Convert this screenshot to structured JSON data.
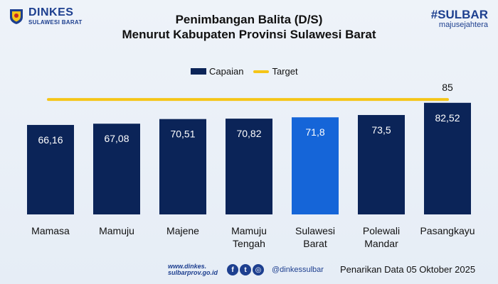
{
  "header": {
    "brand_name": "DINKES",
    "brand_sub": "SULAWESI BARAT",
    "hashtag": "#SULBAR",
    "tagline": "majusejahtera",
    "title_line1": "Penimbangan Balita (D/S)",
    "title_line2": "Menurut Kabupaten Provinsi Sulawesi Barat"
  },
  "legend": {
    "bar_label": "Capaian",
    "line_label": "Target"
  },
  "footer": {
    "web_line1": "www.dinkes.",
    "web_line2": "sulbarprov.go.id",
    "social_handle": "@dinkessulbar",
    "source": "Penarikan Data 05 Oktober 2025"
  },
  "colors": {
    "bar": "#0b2458",
    "highlight_bar": "#1565d8",
    "target": "#f5c518"
  },
  "icons": [
    "facebook-icon",
    "twitter-icon",
    "instagram-icon"
  ],
  "chart_data": {
    "type": "bar",
    "categories": [
      [
        "Mamasa"
      ],
      [
        "Mamuju"
      ],
      [
        "Majene"
      ],
      [
        "Mamuju",
        "Tengah"
      ],
      [
        "Sulawesi",
        "Barat"
      ],
      [
        "Polewali",
        "Mandar"
      ],
      [
        "Pasangkayu"
      ]
    ],
    "series": [
      {
        "name": "Capaian",
        "values": [
          66.16,
          67.08,
          70.51,
          70.82,
          71.8,
          73.5,
          82.52
        ],
        "labels": [
          "66,16",
          "67,08",
          "70,51",
          "70,82",
          "71,8",
          "73,5",
          "82,52"
        ]
      },
      {
        "name": "Target",
        "type": "line",
        "value": 85,
        "label": "85"
      }
    ],
    "highlight_index": 4,
    "ylim": [
      0,
      90
    ],
    "grid": false,
    "legend_position": "top-center"
  }
}
